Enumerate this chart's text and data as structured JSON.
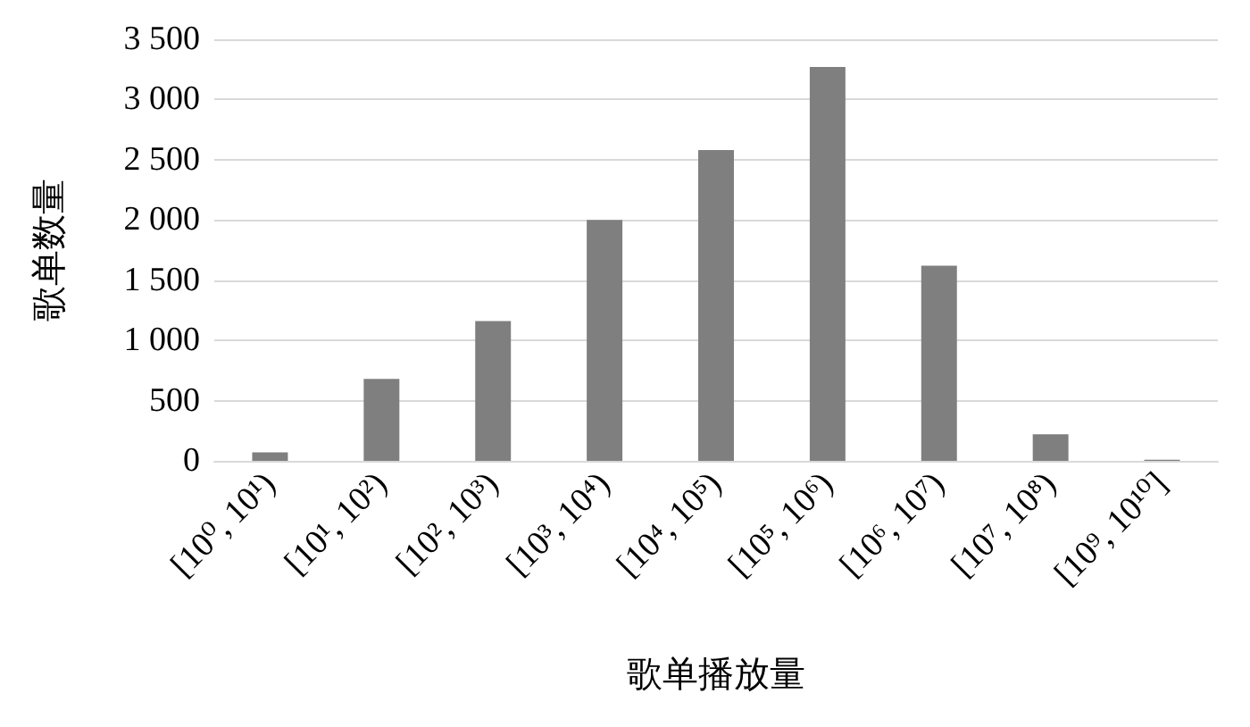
{
  "chart_data": {
    "type": "bar",
    "xlabel": "歌单播放量",
    "ylabel": "歌单数量",
    "categories": [
      "[10⁰, 10¹)",
      "[10¹, 10²)",
      "[10², 10³)",
      "[10³, 10⁴)",
      "[10⁴, 10⁵)",
      "[10⁵, 10⁶)",
      "[10⁶, 10⁷)",
      "[10⁷, 10⁸)",
      "[10⁹, 10¹⁰]"
    ],
    "values": [
      70,
      680,
      1160,
      2000,
      2580,
      3270,
      1620,
      220,
      10
    ],
    "color": "#7f7f7f",
    "ylim": [
      0,
      3500
    ],
    "yticks": [
      0,
      500,
      {
        "value": 1000,
        "label": "1 000"
      },
      {
        "value": 1500,
        "label": "1 500"
      },
      {
        "value": 2000,
        "label": "2 000"
      },
      {
        "value": 2500,
        "label": "2 500"
      },
      {
        "value": 3000,
        "label": "3 000"
      },
      {
        "value": 3500,
        "label": "3 500"
      }
    ],
    "grid": "y"
  }
}
